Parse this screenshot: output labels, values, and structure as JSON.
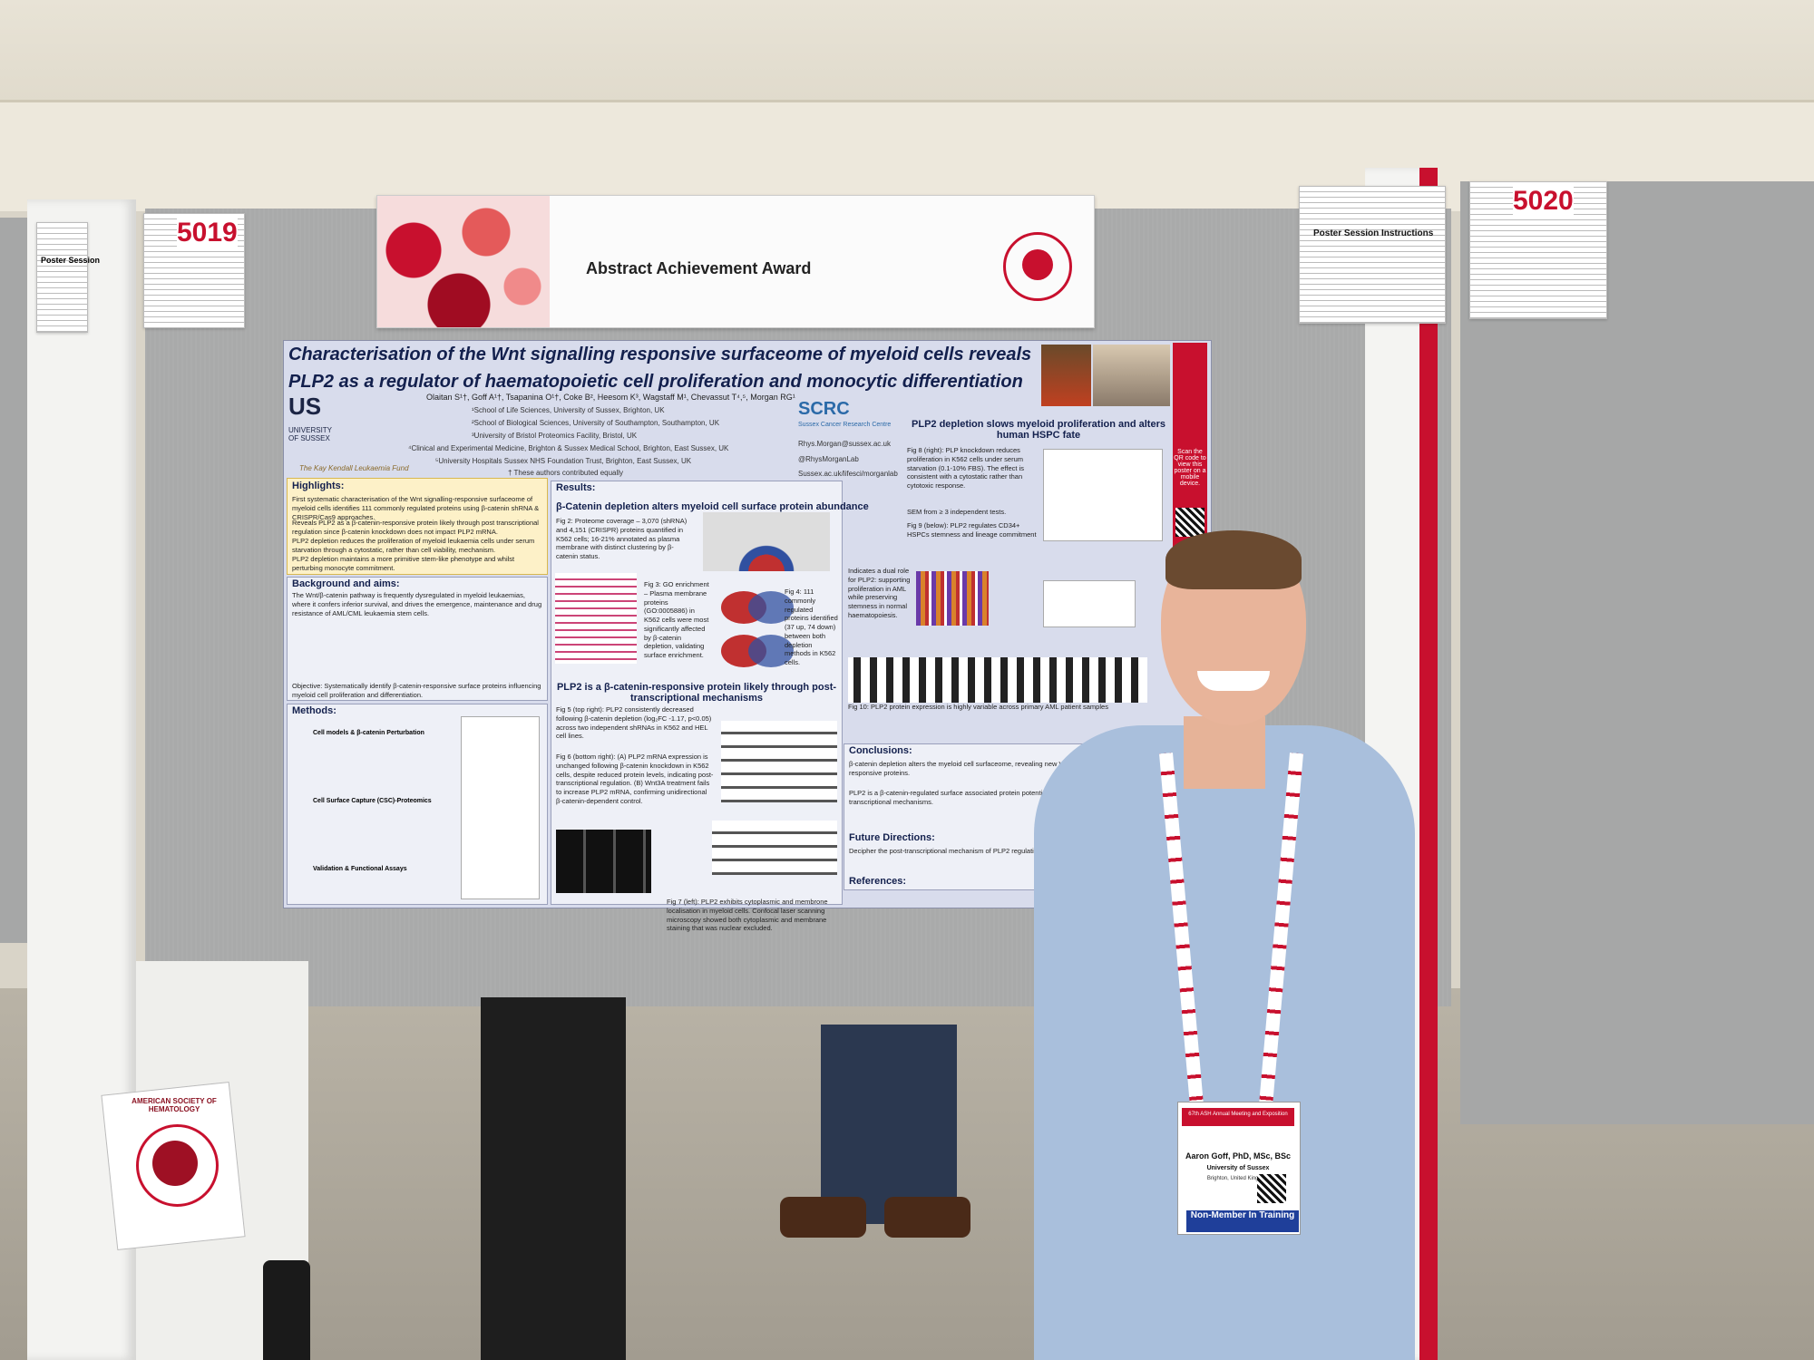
{
  "banner": {
    "title": "Abstract Achievement Award",
    "logo_icon": "ash-logo-icon"
  },
  "board_numbers": {
    "left": "5019",
    "right": "5020"
  },
  "instructions": {
    "title": "Poster Session Instructions"
  },
  "left_card": {
    "title": "Poster Session"
  },
  "poster": {
    "title_line1": "Characterisation of the Wnt signalling responsive surfaceome of myeloid cells reveals",
    "title_line2": "PLP2 as a regulator of haematopoietic cell proliferation and monocytic differentiation",
    "authors": "Olaitan S¹†, Goff A¹†, Tsapanina O¹†, Coke B², Heesom K³, Wagstaff M¹, Chevassut T⁴,⁵, Morgan RG¹",
    "affiliations": [
      "¹School of Life Sciences, University of Sussex, Brighton, UK",
      "²School of Biological Sciences, University of Southampton, Southampton, UK",
      "³University of Bristol Proteomics Facility, Bristol, UK",
      "⁴Clinical and Experimental Medicine, Brighton & Sussex Medical School, Brighton, East Sussex, UK",
      "⁵University Hospitals Sussex NHS Foundation Trust, Brighton, East Sussex, UK"
    ],
    "equal_contribution": "† These authors contributed equally",
    "logo_us": "US",
    "logo_us_text": "UNIVERSITY OF SUSSEX",
    "fund": "The Kay Kendall Leukaemia Fund",
    "scrc": "SCRC",
    "scrc_sub": "Sussex Cancer Research Centre",
    "contacts": [
      "Rhys.Morgan@sussex.ac.uk",
      "@RhysMorganLab",
      "Sussex.ac.uk/lifesci/morganlab"
    ],
    "qr_text": "Scan the QR code to view this poster on a mobile device.",
    "highlights": {
      "heading": "Highlights:",
      "items": [
        "First systematic characterisation of the Wnt signalling-responsive surfaceome of myeloid cells identifies 111 commonly regulated proteins using β-catenin shRNA & CRISPR/Cas9 approaches.",
        "Reveals PLP2 as a β-catenin-responsive protein likely through post transcriptional regulation since β-catenin knockdown does not impact PLP2 mRNA.",
        "PLP2 depletion reduces the proliferation of myeloid leukaemia cells under serum starvation through a cytostatic, rather than cell viability, mechanism.",
        "PLP2 depletion maintains a more primitive stem-like phenotype and whilst perturbing monocyte commitment."
      ]
    },
    "background": {
      "heading": "Background and aims:",
      "text": "The Wnt/β-catenin pathway is frequently dysregulated in myeloid leukaemias, where it confers inferior survival, and drives the emergence, maintenance and drug resistance of AML/CML leukaemia stem cells.",
      "objective": "Objective: Systematically identify β-catenin-responsive surface proteins influencing myeloid cell proliferation and differentiation."
    },
    "methods": {
      "heading": "Methods:",
      "steps": [
        "Cell models & β-catenin Perturbation",
        "Cell Surface Capture (CSC)-Proteomics",
        "Validation & Functional Assays"
      ]
    },
    "results": {
      "heading": "Results:",
      "sub1": "β-Catenin depletion alters myeloid cell surface protein abundance",
      "fig2": "Fig 2: Proteome coverage – 3,070 (shRNA) and 4,151 (CRISPR) proteins quantified in K562 cells; 16-21% annotated as plasma membrane with distinct clustering by β-catenin status.",
      "fig3": "Fig 3: GO enrichment – Plasma membrane proteins (GO:0005886) in K562 cells were most significantly affected by β-catenin depletion, validating surface enrichment.",
      "fig4": "Fig 4: 111 commonly regulated proteins identified (37 up, 74 down) between both depletion methods in K562 cells.",
      "sub2": "PLP2 is a β-catenin-responsive protein likely through post-transcriptional mechanisms",
      "fig5": "Fig 5 (top right): PLP2 consistently decreased following β-catenin depletion (log₂FC -1.17, p<0.05) across two independent shRNAs in K562 and HEL cell lines.",
      "fig6": "Fig 6 (bottom right): (A) PLP2 mRNA expression is unchanged following β-catenin knockdown in K562 cells, despite reduced protein levels, indicating post-transcriptional regulation. (B) Wnt3A treatment fails to increase PLP2 mRNA, confirming unidirectional β-catenin-dependent control.",
      "fig7": "Fig 7 (left): PLP2 exhibits cytoplasmic and membrone localisation in myeloid cells. Confocal laser scanning microscopy showed both cytoplasmic and membrane staining that was nuclear excluded."
    },
    "plp2": {
      "heading": "PLP2 depletion slows myeloid proliferation and alters human HSPC fate",
      "fig8": "Fig 8 (right): PLP knockdown reduces proliferation in K562 cells under serum starvation (0.1-10% FBS). The effect is consistent with a cytostatic rather than cytotoxic response.",
      "sem": "SEM from ≥ 3 independent tests.",
      "fig9": "Fig 9 (below): PLP2 regulates CD34+ HSPCs stemness and lineage commitment",
      "dual": "Indicates a dual role for PLP2: supporting proliferation in AML while preserving stemness in normal haematopoiesis.",
      "fig10": "Fig 10: PLP2 protein expression is highly variable across primary AML patient samples"
    },
    "conclusions": {
      "heading": "Conclusions:",
      "items": [
        "β-catenin depletion alters the myeloid cell surfaceome, revealing new Wnt signalling responsive proteins.",
        "PLP2 is a β-catenin-regulated surface associated protein potentially controlled by post-transcriptional mechanisms."
      ],
      "future_heading": "Future Directions:",
      "future": "Decipher the post-transcriptional mechanism of PLP2 regulation.",
      "ref_heading": "References:"
    }
  },
  "badge": {
    "event": "67th ASH Annual Meeting and Exposition",
    "name": "Aaron Goff, PhD, MSc, BSc",
    "org": "University of Sussex",
    "location": "Brighton, United Kingdom",
    "status": "Non-Member In Training"
  },
  "ash_card_text": "AMERICAN SOCIETY OF HEMATOLOGY",
  "colors": {
    "ash_red": "#c8102e",
    "poster_navy": "#13204d",
    "shirt": "#a9bfdc"
  }
}
